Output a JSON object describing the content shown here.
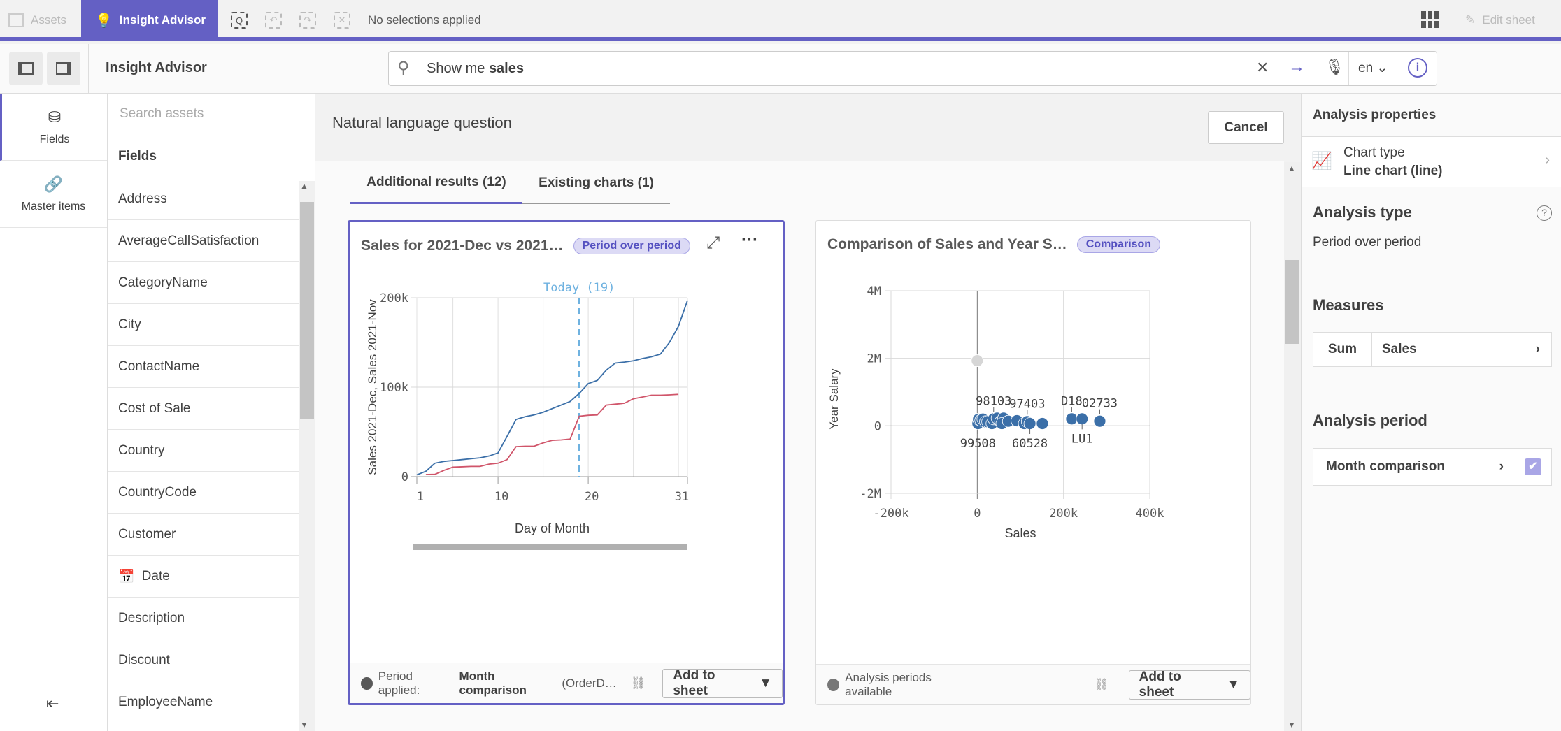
{
  "topbar": {
    "assets": "Assets",
    "insight_advisor": "Insight Advisor",
    "selections": "No selections applied",
    "edit_sheet": "Edit sheet"
  },
  "header": {
    "title": "Insight Advisor",
    "search_prefix": "Show me ",
    "search_bold": "sales",
    "language": "en"
  },
  "rail": {
    "items": [
      {
        "label": "Fields",
        "icon": "database-icon"
      },
      {
        "label": "Master items",
        "icon": "link-icon"
      }
    ]
  },
  "fields_panel": {
    "search_placeholder": "Search assets",
    "header": "Fields",
    "items": [
      "Address",
      "AverageCallSatisfaction",
      "CategoryName",
      "City",
      "ContactName",
      "Cost of Sale",
      "Country",
      "CountryCode",
      "Customer",
      "Date",
      "Description",
      "Discount",
      "EmployeeName"
    ]
  },
  "main": {
    "title": "Natural language question",
    "cancel": "Cancel",
    "tabs": [
      "Additional results (12)",
      "Existing charts (1)"
    ]
  },
  "cards": [
    {
      "title": "Sales for 2021-Dec vs 2021…",
      "badge": "Period over period",
      "footer_label": "Period applied:",
      "footer_bold": "Month comparison",
      "footer_rest": "(OrderD…",
      "add": "Add to sheet"
    },
    {
      "title": "Comparison of Sales and Year S…",
      "badge": "Comparison",
      "footer_label": "Analysis periods available",
      "add": "Add to sheet"
    }
  ],
  "right": {
    "title": "Analysis properties",
    "chart_type_label": "Chart type",
    "chart_type_value": "Line chart (line)",
    "analysis_type": "Analysis type",
    "analysis_type_value": "Period over period",
    "measures": "Measures",
    "measure_agg": "Sum",
    "measure_field": "Sales",
    "analysis_period": "Analysis period",
    "period_value": "Month comparison"
  },
  "chart_data": [
    {
      "type": "line",
      "xlabel": "Day of Month",
      "ylabel": "Sales 2021-Dec, Sales 2021-Nov",
      "xticks": [
        "1",
        "10",
        "20",
        "31"
      ],
      "yticks": [
        "0",
        "100k",
        "200k"
      ],
      "xlim": [
        1,
        31
      ],
      "ylim": [
        0,
        200000
      ],
      "grid": true,
      "annotation": {
        "label": "Today (19)",
        "x": 19,
        "color": "#6fb2e0"
      },
      "series": [
        {
          "color": "#3b6fa8",
          "x": [
            1,
            2,
            3,
            4,
            5,
            6,
            7,
            8,
            9,
            10,
            11,
            12,
            13,
            14,
            15,
            16,
            17,
            18,
            19,
            20,
            21,
            22,
            23,
            24,
            25,
            26,
            27,
            28,
            29,
            30,
            31
          ],
          "values": [
            2000,
            6000,
            15000,
            17000,
            18000,
            19000,
            20000,
            21000,
            23000,
            26500,
            45000,
            64000,
            67000,
            69000,
            72000,
            76000,
            80000,
            84000,
            93000,
            104000,
            107500,
            119000,
            127000,
            128000,
            129500,
            132000,
            134000,
            137000,
            150000,
            168000,
            197000
          ]
        },
        {
          "color": "#d0556a",
          "x": [
            2,
            3,
            4,
            5,
            6,
            7,
            8,
            9,
            10,
            11,
            12,
            13,
            14,
            15,
            16,
            17,
            18,
            19,
            20,
            21,
            22,
            23,
            24,
            25,
            26,
            27,
            28,
            29,
            30
          ],
          "values": [
            2300,
            2600,
            7000,
            10600,
            11000,
            11400,
            11400,
            14000,
            15000,
            19000,
            33500,
            34000,
            34000,
            37700,
            40500,
            41000,
            42000,
            67500,
            68600,
            69000,
            80000,
            81000,
            82000,
            87000,
            89000,
            91000,
            91000,
            91400,
            92000
          ]
        }
      ]
    },
    {
      "type": "scatter",
      "xlabel": "Sales",
      "ylabel": "Year Salary",
      "xticks": [
        "-200k",
        "0",
        "200k",
        "400k"
      ],
      "yticks": [
        "-2M",
        "0",
        "2M",
        "4M"
      ],
      "xlim": [
        -200000,
        400000
      ],
      "ylim": [
        -2000000,
        4000000
      ],
      "grid": true,
      "points": [
        {
          "x": 0,
          "y": 1930000,
          "muted": true
        },
        {
          "x": 1600,
          "y": 69000,
          "label": "99508",
          "pos": "below"
        },
        {
          "x": 3000,
          "y": 193000
        },
        {
          "x": 8000,
          "y": 165000
        },
        {
          "x": 13000,
          "y": 200000
        },
        {
          "x": 19000,
          "y": 124000
        },
        {
          "x": 24000,
          "y": 124000
        },
        {
          "x": 34000,
          "y": 69000
        },
        {
          "x": 38000,
          "y": 207000,
          "label": "98103",
          "pos": "above"
        },
        {
          "x": 46000,
          "y": 228000
        },
        {
          "x": 54000,
          "y": 124000
        },
        {
          "x": 61000,
          "y": 228000
        },
        {
          "x": 57000,
          "y": 69000
        },
        {
          "x": 72000,
          "y": 138000
        },
        {
          "x": 92000,
          "y": 152000
        },
        {
          "x": 109000,
          "y": 69000
        },
        {
          "x": 116000,
          "y": 124000,
          "label": "97403",
          "pos": "above"
        },
        {
          "x": 122000,
          "y": 69000,
          "label": "60528",
          "pos": "below"
        },
        {
          "x": 151000,
          "y": 69000
        },
        {
          "x": 219000,
          "y": 207000,
          "label": "D18",
          "pos": "above"
        },
        {
          "x": 243000,
          "y": 207000,
          "label": "LU1",
          "pos": "below"
        },
        {
          "x": 284000,
          "y": 138000,
          "label": "02733",
          "pos": "above"
        }
      ]
    }
  ]
}
